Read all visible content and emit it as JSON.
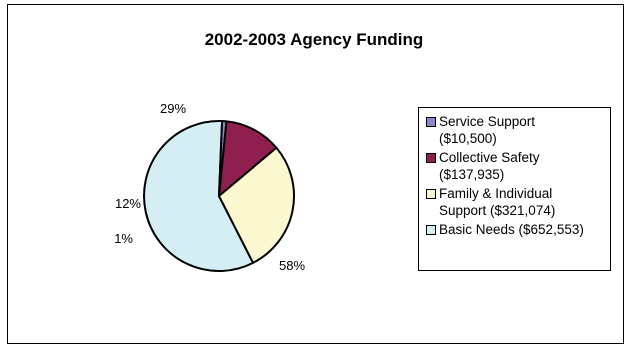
{
  "chart_data": {
    "type": "pie",
    "title": "2002-2003 Agency Funding",
    "slices": [
      {
        "name": "Service Support",
        "amount": "($10,500)",
        "legend_label": "Service Support\n($10,500)",
        "value": 10500,
        "percent_label": "1%",
        "color": "#8a87c8"
      },
      {
        "name": "Collective Safety",
        "amount": "($137,935)",
        "legend_label": "Collective Safety\n($137,935)",
        "value": 137935,
        "percent_label": "12%",
        "color": "#8e1f4f"
      },
      {
        "name": "Family & Individual Support",
        "amount": "($321,074)",
        "legend_label": "Family & Individual\nSupport ($321,074)",
        "value": 321074,
        "percent_label": "29%",
        "color": "#fbf8d0"
      },
      {
        "name": "Basic Needs",
        "amount": "($652,553)",
        "legend_label": "Basic Needs ($652,553)",
        "value": 652553,
        "percent_label": "58%",
        "color": "#d4eef4"
      }
    ],
    "legend_placement": "right"
  }
}
